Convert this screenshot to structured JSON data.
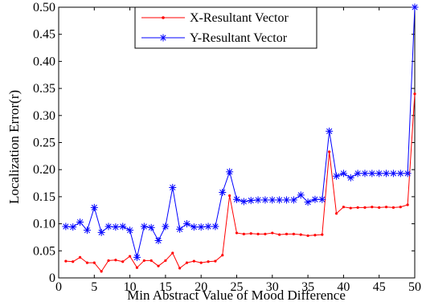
{
  "chart_data": {
    "type": "line",
    "title": "",
    "xlabel": "Min Abstract Value of Mood Difference",
    "ylabel": "Localization Error(r)",
    "xlim": [
      0,
      50
    ],
    "ylim": [
      0,
      0.5
    ],
    "xticks": [
      0,
      5,
      10,
      15,
      20,
      25,
      30,
      35,
      40,
      45,
      50
    ],
    "yticks": [
      0,
      0.05,
      0.1,
      0.15,
      0.2,
      0.25,
      0.3,
      0.35,
      0.4,
      0.45,
      0.5
    ],
    "xtick_labels": [
      "0",
      "5",
      "10",
      "15",
      "20",
      "25",
      "30",
      "35",
      "40",
      "45",
      "50"
    ],
    "ytick_labels": [
      "0",
      "0.05",
      "0.10",
      "0.15",
      "0.20",
      "0.25",
      "0.30",
      "0.35",
      "0.40",
      "0.45",
      "0.50"
    ],
    "grid": false,
    "legend_position": "top-center",
    "x": [
      1,
      2,
      3,
      4,
      5,
      6,
      7,
      8,
      9,
      10,
      11,
      12,
      13,
      14,
      15,
      16,
      17,
      18,
      19,
      20,
      21,
      22,
      23,
      24,
      25,
      26,
      27,
      28,
      29,
      30,
      31,
      32,
      33,
      34,
      35,
      36,
      37,
      38,
      39,
      40,
      41,
      42,
      43,
      44,
      45,
      46,
      47,
      48,
      49,
      50
    ],
    "series": [
      {
        "name": "X-Resultant Vector",
        "color": "#ff0000",
        "marker": "dot",
        "values": [
          0.031,
          0.03,
          0.038,
          0.028,
          0.028,
          0.012,
          0.032,
          0.033,
          0.03,
          0.04,
          0.019,
          0.032,
          0.032,
          0.022,
          0.032,
          0.046,
          0.018,
          0.028,
          0.031,
          0.028,
          0.03,
          0.031,
          0.042,
          0.152,
          0.083,
          0.081,
          0.082,
          0.081,
          0.081,
          0.083,
          0.08,
          0.081,
          0.081,
          0.08,
          0.078,
          0.079,
          0.08,
          0.233,
          0.119,
          0.131,
          0.129,
          0.13,
          0.13,
          0.131,
          0.13,
          0.131,
          0.13,
          0.131,
          0.135,
          0.34
        ]
      },
      {
        "name": "Y-Resultant Vector",
        "color": "#0000ff",
        "marker": "asterisk",
        "values": [
          0.095,
          0.094,
          0.103,
          0.088,
          0.13,
          0.084,
          0.095,
          0.094,
          0.095,
          0.088,
          0.038,
          0.095,
          0.093,
          0.069,
          0.095,
          0.167,
          0.09,
          0.1,
          0.094,
          0.094,
          0.095,
          0.095,
          0.158,
          0.196,
          0.145,
          0.141,
          0.143,
          0.144,
          0.144,
          0.144,
          0.144,
          0.144,
          0.144,
          0.153,
          0.14,
          0.145,
          0.145,
          0.271,
          0.188,
          0.193,
          0.185,
          0.193,
          0.193,
          0.193,
          0.193,
          0.193,
          0.193,
          0.193,
          0.193,
          0.5
        ]
      }
    ]
  }
}
